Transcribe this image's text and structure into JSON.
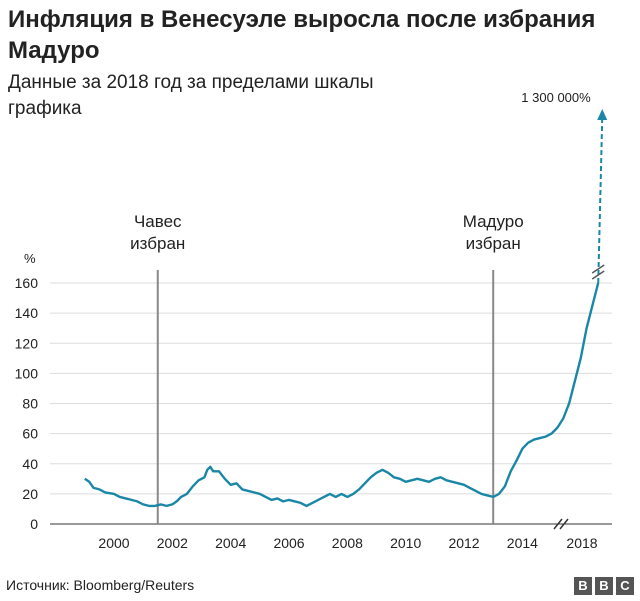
{
  "title": "Инфляция в Венесуэле выросла после избрания Мадуро",
  "subtitle": "Данные за 2018 год за пределами шкалы графика",
  "source": "Источник: Bloomberg/Reuters",
  "logo": [
    "B",
    "B",
    "C"
  ],
  "chart_data": {
    "type": "line",
    "title": "Инфляция в Венесуэле выросла после избрания Мадуро",
    "subtitle": "Данные за 2018 год за пределами шкалы графика",
    "ylabel": "%",
    "ylim": [
      0,
      160
    ],
    "yticks": [
      0,
      20,
      40,
      60,
      80,
      100,
      120,
      140,
      160
    ],
    "xticks": [
      "2000",
      "2002",
      "2004",
      "2006",
      "2008",
      "2010",
      "2012",
      "2014",
      "2018"
    ],
    "grid": "horizontal",
    "colors": {
      "line": "#1a87a6",
      "annotation": "#888888",
      "grid": "#dddddd"
    },
    "annotations": [
      {
        "label": "Чавес избран",
        "x": 2001.5
      },
      {
        "label": "Мадуро избран",
        "x": 2013.0
      }
    ],
    "offscale": {
      "label": "1 300 000%",
      "year": 2018
    },
    "series": [
      {
        "values": [
          [
            1999.0,
            30
          ],
          [
            1999.15,
            28
          ],
          [
            1999.3,
            24
          ],
          [
            1999.5,
            23
          ],
          [
            1999.7,
            21
          ],
          [
            2000.0,
            20
          ],
          [
            2000.2,
            18
          ],
          [
            2000.4,
            17
          ],
          [
            2000.6,
            16
          ],
          [
            2000.8,
            15
          ],
          [
            2001.0,
            13
          ],
          [
            2001.2,
            12
          ],
          [
            2001.4,
            12
          ],
          [
            2001.6,
            13
          ],
          [
            2001.8,
            12
          ],
          [
            2002.0,
            13
          ],
          [
            2002.15,
            15
          ],
          [
            2002.3,
            18
          ],
          [
            2002.5,
            20
          ],
          [
            2002.7,
            25
          ],
          [
            2002.9,
            29
          ],
          [
            2003.1,
            31
          ],
          [
            2003.2,
            36
          ],
          [
            2003.3,
            38
          ],
          [
            2003.4,
            35
          ],
          [
            2003.6,
            35
          ],
          [
            2003.8,
            30
          ],
          [
            2004.0,
            26
          ],
          [
            2004.2,
            27
          ],
          [
            2004.4,
            23
          ],
          [
            2004.6,
            22
          ],
          [
            2004.8,
            21
          ],
          [
            2005.0,
            20
          ],
          [
            2005.2,
            18
          ],
          [
            2005.4,
            16
          ],
          [
            2005.6,
            17
          ],
          [
            2005.8,
            15
          ],
          [
            2006.0,
            16
          ],
          [
            2006.2,
            15
          ],
          [
            2006.4,
            14
          ],
          [
            2006.6,
            12
          ],
          [
            2006.8,
            14
          ],
          [
            2007.0,
            16
          ],
          [
            2007.2,
            18
          ],
          [
            2007.4,
            20
          ],
          [
            2007.6,
            18
          ],
          [
            2007.8,
            20
          ],
          [
            2008.0,
            18
          ],
          [
            2008.2,
            20
          ],
          [
            2008.4,
            23
          ],
          [
            2008.6,
            27
          ],
          [
            2008.8,
            31
          ],
          [
            2009.0,
            34
          ],
          [
            2009.2,
            36
          ],
          [
            2009.4,
            34
          ],
          [
            2009.6,
            31
          ],
          [
            2009.8,
            30
          ],
          [
            2010.0,
            28
          ],
          [
            2010.2,
            29
          ],
          [
            2010.4,
            30
          ],
          [
            2010.6,
            29
          ],
          [
            2010.8,
            28
          ],
          [
            2011.0,
            30
          ],
          [
            2011.2,
            31
          ],
          [
            2011.4,
            29
          ],
          [
            2011.6,
            28
          ],
          [
            2011.8,
            27
          ],
          [
            2012.0,
            26
          ],
          [
            2012.2,
            24
          ],
          [
            2012.4,
            22
          ],
          [
            2012.6,
            20
          ],
          [
            2012.8,
            19
          ],
          [
            2013.0,
            18
          ],
          [
            2013.2,
            20
          ],
          [
            2013.4,
            25
          ],
          [
            2013.6,
            35
          ],
          [
            2013.8,
            42
          ],
          [
            2014.0,
            50
          ],
          [
            2014.2,
            54
          ],
          [
            2014.4,
            56
          ],
          [
            2014.6,
            57
          ],
          [
            2014.8,
            58
          ],
          [
            2015.0,
            60
          ],
          [
            2015.2,
            64
          ],
          [
            2015.4,
            70
          ],
          [
            2015.6,
            80
          ],
          [
            2015.8,
            95
          ],
          [
            2016.0,
            110
          ],
          [
            2016.2,
            130
          ],
          [
            2016.4,
            145
          ],
          [
            2016.6,
            160
          ]
        ]
      }
    ]
  }
}
